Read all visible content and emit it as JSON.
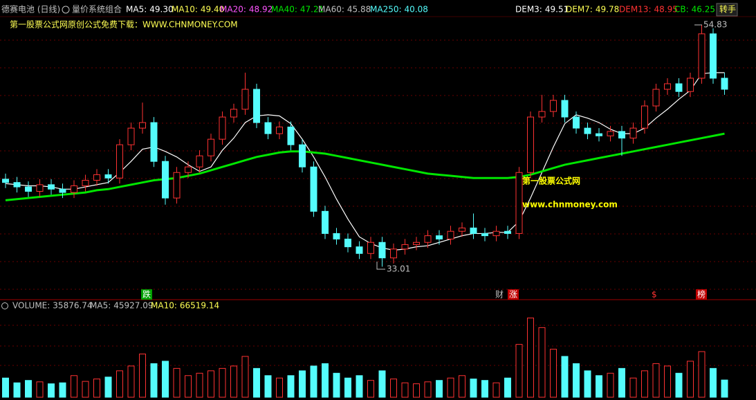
{
  "chart_data": [
    {
      "type": "candlestick",
      "title": "德赛电池 (日线)",
      "subtitle": "量价系统组合",
      "indicators": [
        {
          "name": "MA5:",
          "value_label": "49.30",
          "color": "#ffffff"
        },
        {
          "name": "MA10:",
          "value_label": "49.40",
          "color": "#ffff54"
        },
        {
          "name": "MA20:",
          "value_label": "48.92",
          "color": "#ff54ff"
        },
        {
          "name": "MA40:",
          "value_label": "47.21",
          "color": "#00e600"
        },
        {
          "name": "MA60:",
          "value_label": "45.88",
          "color": "#c0c0c0"
        },
        {
          "name": "MA250:",
          "value_label": "40.08",
          "color": "#54fcfc"
        },
        {
          "name": "DEM3:",
          "value_label": "49.51",
          "color": "#ffffff"
        },
        {
          "name": "DEM7:",
          "value_label": "49.78",
          "color": "#ffff54"
        },
        {
          "name": "DEM13:",
          "value_label": "48.95",
          "color": "#ff3232"
        },
        {
          "name": "CB:",
          "value_label": "46.25",
          "color": "#00e600"
        }
      ],
      "button": "转手",
      "annotations": [
        "第一股票公式网原创公式免费下载：WWW.CHNMONEY.COM",
        "第一股票公式网",
        "www.chnmoney.com",
        "54.83",
        "33.01"
      ],
      "signals": [
        "跌",
        "财",
        "涨",
        "$",
        "榜"
      ],
      "up_color": "#ff3232",
      "down_color": "#54fcfc",
      "ylim": [
        30.1,
        55.8
      ],
      "open": [
        40.9,
        40.6,
        40.2,
        39.8,
        40.4,
        40.0,
        39.7,
        40.3,
        40.8,
        41.3,
        41.0,
        44.0,
        45.5,
        46.0,
        42.5,
        39.2,
        41.5,
        42.0,
        43.0,
        44.5,
        46.5,
        47.2,
        49.0,
        46.0,
        45.0,
        45.6,
        44.0,
        42.0,
        38.0,
        36.0,
        35.5,
        34.8,
        34.2,
        35.2,
        33.8,
        34.6,
        35.0,
        35.2,
        35.8,
        35.5,
        36.2,
        36.5,
        36.0,
        35.8,
        36.2,
        36.0,
        41.5,
        46.5,
        47.0,
        48.0,
        46.5,
        45.5,
        45.0,
        44.8,
        45.2,
        44.6,
        45.5,
        47.5,
        49.0,
        49.5,
        48.8,
        50.0,
        54.0,
        50.0
      ],
      "high": [
        41.4,
        41.1,
        40.7,
        40.9,
        40.9,
        40.5,
        40.8,
        41.3,
        41.8,
        41.8,
        44.5,
        46.0,
        47.8,
        46.5,
        43.0,
        42.0,
        42.5,
        43.5,
        45.0,
        47.0,
        47.7,
        50.5,
        49.5,
        46.5,
        46.1,
        46.1,
        44.5,
        42.5,
        38.5,
        36.5,
        36.0,
        35.3,
        35.7,
        35.7,
        35.1,
        35.5,
        35.7,
        36.3,
        36.3,
        36.7,
        37.0,
        37.8,
        36.5,
        36.7,
        36.7,
        42.0,
        47.0,
        48.5,
        48.5,
        48.5,
        47.0,
        46.0,
        45.5,
        45.7,
        45.7,
        46.0,
        48.0,
        49.5,
        50.0,
        50.0,
        50.5,
        54.83,
        54.5,
        50.5
      ],
      "low": [
        40.1,
        39.7,
        39.3,
        39.3,
        39.5,
        39.2,
        39.2,
        39.8,
        40.3,
        40.5,
        40.5,
        43.5,
        45.0,
        42.0,
        38.6,
        38.7,
        41.0,
        41.5,
        42.5,
        44.0,
        46.0,
        46.7,
        45.5,
        44.5,
        44.5,
        43.5,
        41.5,
        37.5,
        35.5,
        35.0,
        34.3,
        33.7,
        33.7,
        33.01,
        33.3,
        34.1,
        34.5,
        34.7,
        35.0,
        35.0,
        35.7,
        35.5,
        35.3,
        35.3,
        35.5,
        35.5,
        41.0,
        46.0,
        46.5,
        46.0,
        45.0,
        44.5,
        44.3,
        44.3,
        43.0,
        44.1,
        45.0,
        47.0,
        48.5,
        48.3,
        48.3,
        49.5,
        49.5,
        48.5
      ],
      "close": [
        40.6,
        40.2,
        39.8,
        40.4,
        40.0,
        39.7,
        40.3,
        40.8,
        41.3,
        41.0,
        44.0,
        45.5,
        46.0,
        42.5,
        39.2,
        41.5,
        42.0,
        43.0,
        44.5,
        46.5,
        47.2,
        49.0,
        46.0,
        45.0,
        45.6,
        44.0,
        42.0,
        38.0,
        36.0,
        35.5,
        34.8,
        34.2,
        35.2,
        33.8,
        34.6,
        35.0,
        35.2,
        35.8,
        35.5,
        36.2,
        36.5,
        36.0,
        35.8,
        36.2,
        36.0,
        41.5,
        46.5,
        47.0,
        48.0,
        46.5,
        45.5,
        45.0,
        44.8,
        45.2,
        44.6,
        45.5,
        47.5,
        49.0,
        49.5,
        48.8,
        50.0,
        54.0,
        50.0,
        49.0
      ],
      "lines": [
        {
          "color": "#ffffff",
          "values": [
            40.5,
            40.4,
            40.3,
            40.3,
            40.2,
            40.0,
            40.0,
            40.2,
            40.4,
            40.6,
            41.5,
            42.5,
            43.6,
            43.8,
            43.4,
            42.9,
            42.2,
            41.6,
            42.0,
            43.5,
            44.6,
            46.0,
            46.6,
            46.7,
            46.6,
            45.9,
            44.5,
            42.9,
            41.1,
            39.1,
            37.3,
            35.7,
            35.1,
            34.7,
            34.5,
            34.6,
            34.8,
            34.9,
            35.2,
            35.5,
            35.8,
            36.0,
            36.0,
            36.1,
            36.1,
            37.1,
            39.2,
            41.5,
            43.8,
            45.9,
            46.7,
            46.4,
            46.0,
            45.4,
            45.0,
            45.0,
            45.5,
            46.4,
            47.2,
            48.1,
            48.9,
            50.4,
            50.5,
            50.5
          ]
        },
        {
          "color": "#00e600",
          "values": [
            39.0,
            39.1,
            39.2,
            39.3,
            39.4,
            39.5,
            39.6,
            39.7,
            39.9,
            40.0,
            40.2,
            40.4,
            40.6,
            40.8,
            40.9,
            41.0,
            41.2,
            41.4,
            41.7,
            42.0,
            42.3,
            42.6,
            42.9,
            43.1,
            43.3,
            43.4,
            43.4,
            43.3,
            43.2,
            43.0,
            42.8,
            42.6,
            42.4,
            42.2,
            42.0,
            41.8,
            41.6,
            41.4,
            41.3,
            41.2,
            41.1,
            41.0,
            41.0,
            41.0,
            41.0,
            41.1,
            41.3,
            41.6,
            41.9,
            42.2,
            42.4,
            42.6,
            42.8,
            43.0,
            43.2,
            43.4,
            43.6,
            43.8,
            44.0,
            44.2,
            44.4,
            44.6,
            44.8,
            45.0
          ]
        }
      ]
    },
    {
      "type": "bar",
      "indicators": [
        {
          "name": "VOLUME:",
          "value_label": "35876.74",
          "color": "#c0c0c0"
        },
        {
          "name": "MA5:",
          "value_label": "45927.09",
          "color": "#c0c0c0"
        },
        {
          "name": "MA10:",
          "value_label": "66519.14",
          "color": "#ffff54"
        }
      ],
      "ylim": [
        0,
        170000
      ],
      "values": [
        40000,
        30000,
        35000,
        32000,
        28000,
        30000,
        45000,
        33000,
        38000,
        42000,
        55000,
        65000,
        90000,
        70000,
        75000,
        60000,
        45000,
        50000,
        55000,
        60000,
        65000,
        85000,
        60000,
        45000,
        40000,
        45000,
        55000,
        65000,
        70000,
        50000,
        40000,
        45000,
        35000,
        55000,
        38000,
        30000,
        28000,
        32000,
        35000,
        40000,
        45000,
        38000,
        35000,
        30000,
        40000,
        110000,
        165000,
        145000,
        100000,
        85000,
        70000,
        55000,
        45000,
        50000,
        60000,
        40000,
        55000,
        70000,
        65000,
        50000,
        75000,
        95000,
        60000,
        35876.74
      ]
    }
  ]
}
